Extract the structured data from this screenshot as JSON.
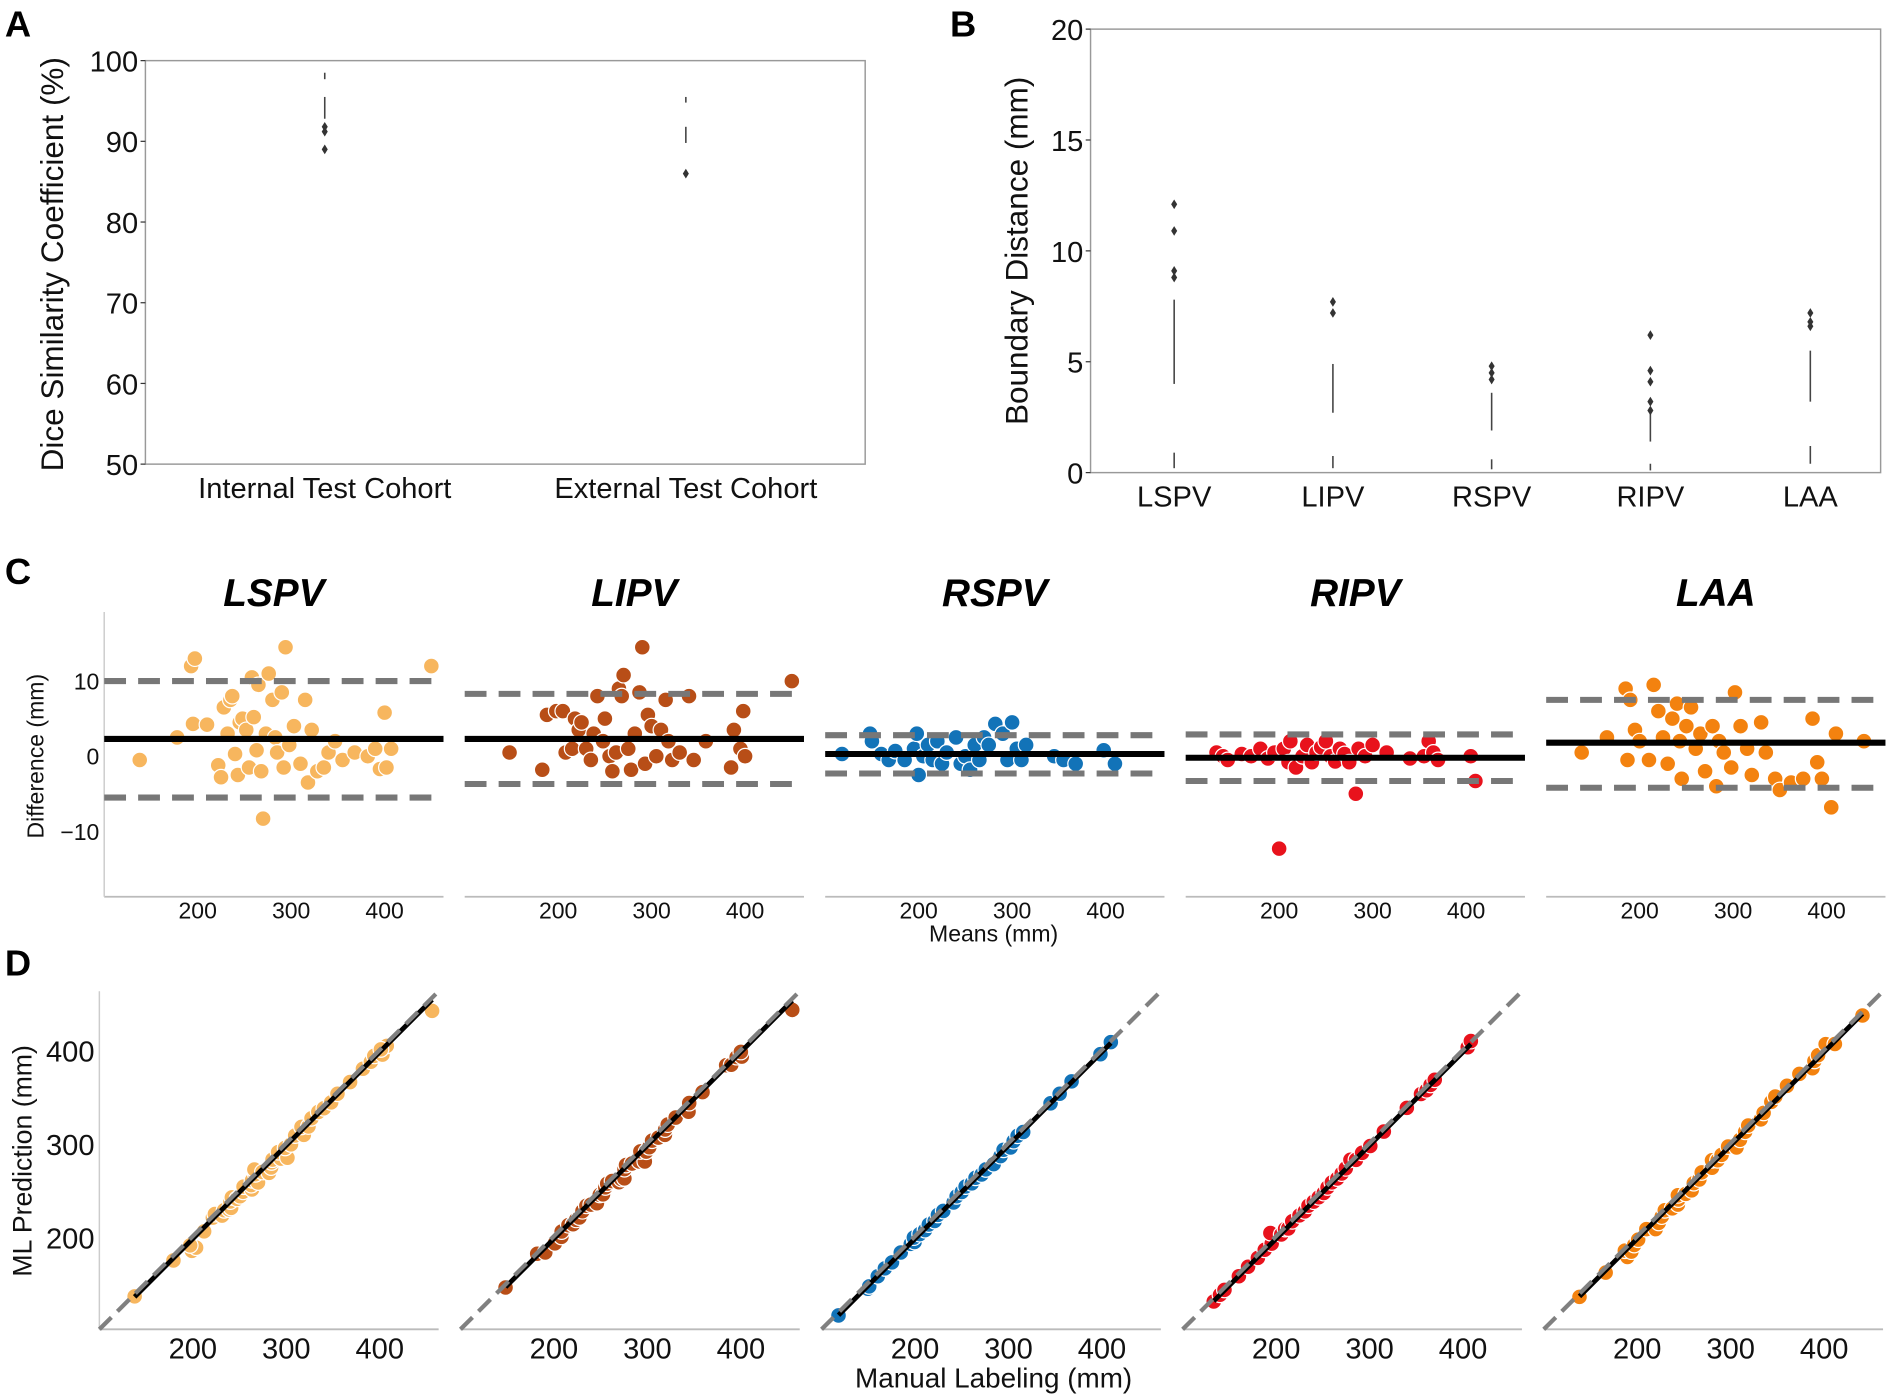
{
  "panels": {
    "a": "A",
    "b": "B",
    "c": "C",
    "d": "D"
  },
  "chart_data": [
    {
      "type": "box",
      "panel": "A",
      "ylabel": "Dice Similarity Coefficient (%)",
      "ylim": [
        50,
        100
      ],
      "yticks": [
        "50",
        "60",
        "70",
        "80",
        "90",
        "100"
      ],
      "yticks_values": [
        50,
        60,
        70,
        80,
        90,
        100
      ],
      "categories": [
        "Internal Test Cohort",
        "External Test Cohort"
      ],
      "boxes": [
        {
          "name": "Internal Test Cohort",
          "color": "#6b4199",
          "whislo": 92.8,
          "q1": 95.5,
          "med": 96.8,
          "q3": 97.7,
          "whishi": 98.5,
          "fliers": [
            91.8,
            91.2,
            89.0
          ]
        },
        {
          "name": "External Test Cohort",
          "color": "#cdb2d8",
          "whislo": 89.8,
          "q1": 91.8,
          "med": 93.5,
          "q3": 94.8,
          "whishi": 95.5,
          "fliers": [
            86.0
          ]
        }
      ]
    },
    {
      "type": "box",
      "panel": "B",
      "ylabel": "Boundary Distance (mm)",
      "ylim": [
        0,
        20
      ],
      "yticks": [
        "0",
        "5",
        "10",
        "15",
        "20"
      ],
      "yticks_values": [
        0,
        5,
        10,
        15,
        20
      ],
      "categories": [
        "LSPV",
        "LIPV",
        "RSPV",
        "RIPV",
        "LAA"
      ],
      "boxes": [
        {
          "name": "LSPV",
          "color": "#f4be7a",
          "whislo": 0.2,
          "q1": 0.9,
          "med": 2.0,
          "q3": 4.0,
          "whishi": 7.8,
          "fliers": [
            8.8,
            9.1,
            10.9,
            12.1
          ]
        },
        {
          "name": "LIPV",
          "color": "#aa5a2e",
          "whislo": 0.2,
          "q1": 0.75,
          "med": 1.3,
          "q3": 2.7,
          "whishi": 4.9,
          "fliers": [
            7.2,
            7.7
          ]
        },
        {
          "name": "RSPV",
          "color": "#0a72b0",
          "whislo": 0.15,
          "q1": 0.6,
          "med": 1.3,
          "q3": 1.9,
          "whishi": 3.6,
          "fliers": [
            4.2,
            4.5,
            4.8
          ]
        },
        {
          "name": "RIPV",
          "color": "#e0162c",
          "whislo": 0.1,
          "q1": 0.4,
          "med": 0.9,
          "q3": 1.4,
          "whishi": 2.7,
          "fliers": [
            2.8,
            3.2,
            4.1,
            4.6,
            6.2
          ]
        },
        {
          "name": "LAA",
          "color": "#f07f00",
          "whislo": 0.4,
          "q1": 1.2,
          "med": 2.1,
          "q3": 3.2,
          "whishi": 5.5,
          "fliers": [
            6.6,
            6.8,
            7.2
          ]
        }
      ]
    },
    {
      "type": "scatter",
      "panel": "C",
      "subtype": "bland-altman",
      "ylabel": "Difference (mm)",
      "xlabel": "Means (mm)",
      "xlim": [
        100,
        463
      ],
      "ylim": [
        -18.7,
        19.2
      ],
      "xticks": [
        "200",
        "300",
        "400"
      ],
      "xticks_values": [
        200,
        300,
        400
      ],
      "yticks": [
        "−10",
        "0",
        "10"
      ],
      "yticks_values": [
        -10,
        0,
        10
      ],
      "series": [
        {
          "name": "LSPV",
          "color": "#f7b65e",
          "bias": 2.3,
          "upper_loa": 10.0,
          "lower_loa": -5.5,
          "points": [
            [
              138,
              -0.5
            ],
            [
              178,
              2.5
            ],
            [
              193,
              12
            ],
            [
              197,
              13
            ],
            [
              195,
              4.3
            ],
            [
              210,
              4.2
            ],
            [
              222,
              -1.2
            ],
            [
              225,
              -2.8
            ],
            [
              228,
              6.5
            ],
            [
              232,
              3
            ],
            [
              235,
              7.5
            ],
            [
              237,
              8
            ],
            [
              240,
              0.3
            ],
            [
              243,
              -2.5
            ],
            [
              245,
              4.5
            ],
            [
              248,
              5
            ],
            [
              252,
              3.5
            ],
            [
              255,
              -1.5
            ],
            [
              258,
              10.5
            ],
            [
              260,
              5.2
            ],
            [
              263,
              0.8
            ],
            [
              265,
              9.5
            ],
            [
              268,
              -2
            ],
            [
              270,
              -8.3
            ],
            [
              273,
              3
            ],
            [
              276,
              11
            ],
            [
              280,
              7.5
            ],
            [
              283,
              2.5
            ],
            [
              285,
              0.5
            ],
            [
              290,
              8.5
            ],
            [
              292,
              -1.5
            ],
            [
              294,
              14.5
            ],
            [
              298,
              1.5
            ],
            [
              303,
              4
            ],
            [
              310,
              -1
            ],
            [
              315,
              7.5
            ],
            [
              318,
              -3.5
            ],
            [
              322,
              3.5
            ],
            [
              328,
              -2
            ],
            [
              335,
              -1.5
            ],
            [
              340,
              0.5
            ],
            [
              347,
              2
            ],
            [
              355,
              -0.5
            ],
            [
              368,
              0.5
            ],
            [
              382,
              0
            ],
            [
              390,
              1
            ],
            [
              395,
              -1.7
            ],
            [
              400,
              5.8
            ],
            [
              407,
              1
            ],
            [
              402,
              -1.5
            ],
            [
              450,
              12
            ]
          ]
        },
        {
          "name": "LIPV",
          "color": "#b84e17",
          "bias": 2.3,
          "upper_loa": 8.3,
          "lower_loa": -3.7,
          "points": [
            [
              148,
              0.5
            ],
            [
              183,
              -1.8
            ],
            [
              188,
              5.5
            ],
            [
              198,
              6
            ],
            [
              205,
              6
            ],
            [
              208,
              0.5
            ],
            [
              215,
              1
            ],
            [
              218,
              5
            ],
            [
              222,
              3.5
            ],
            [
              225,
              4.5
            ],
            [
              230,
              1
            ],
            [
              235,
              -0.5
            ],
            [
              238,
              3
            ],
            [
              242,
              8
            ],
            [
              248,
              2
            ],
            [
              250,
              5
            ],
            [
              255,
              0
            ],
            [
              258,
              -2
            ],
            [
              262,
              0.5
            ],
            [
              265,
              9
            ],
            [
              268,
              8
            ],
            [
              270,
              10.8
            ],
            [
              275,
              1
            ],
            [
              278,
              -1.8
            ],
            [
              282,
              3
            ],
            [
              287,
              8.5
            ],
            [
              290,
              14.5
            ],
            [
              293,
              -1
            ],
            [
              296,
              5.5
            ],
            [
              300,
              4
            ],
            [
              305,
              0
            ],
            [
              310,
              3.5
            ],
            [
              315,
              7.5
            ],
            [
              318,
              2
            ],
            [
              322,
              -0.5
            ],
            [
              330,
              0.5
            ],
            [
              340,
              8
            ],
            [
              345,
              -0.5
            ],
            [
              358,
              2
            ],
            [
              385,
              -1.5
            ],
            [
              388,
              3.5
            ],
            [
              395,
              1
            ],
            [
              398,
              6
            ],
            [
              400,
              0
            ],
            [
              450,
              10
            ]
          ]
        },
        {
          "name": "RSPV",
          "color": "#1273b8",
          "bias": 0.3,
          "upper_loa": 2.8,
          "lower_loa": -2.3,
          "points": [
            [
              118,
              0.3
            ],
            [
              148,
              3
            ],
            [
              150,
              2
            ],
            [
              160,
              0.3
            ],
            [
              168,
              -0.5
            ],
            [
              175,
              0.7
            ],
            [
              185,
              -0.5
            ],
            [
              195,
              1
            ],
            [
              198,
              3
            ],
            [
              200,
              -2.5
            ],
            [
              205,
              0
            ],
            [
              210,
              1.5
            ],
            [
              215,
              -0.5
            ],
            [
              220,
              2
            ],
            [
              225,
              -1
            ],
            [
              230,
              0.5
            ],
            [
              240,
              2.5
            ],
            [
              245,
              -1
            ],
            [
              250,
              0
            ],
            [
              255,
              -1.8
            ],
            [
              260,
              1.5
            ],
            [
              265,
              -0.5
            ],
            [
              270,
              2.5
            ],
            [
              275,
              1.5
            ],
            [
              282,
              4.3
            ],
            [
              290,
              3
            ],
            [
              295,
              -0.5
            ],
            [
              300,
              4.5
            ],
            [
              305,
              1
            ],
            [
              310,
              -0.5
            ],
            [
              315,
              1.5
            ],
            [
              345,
              0
            ],
            [
              355,
              -0.5
            ],
            [
              368,
              -1
            ],
            [
              398,
              0.8
            ],
            [
              410,
              -1
            ]
          ]
        },
        {
          "name": "RIPV",
          "color": "#e8121c",
          "bias": -0.2,
          "upper_loa": 2.9,
          "lower_loa": -3.3,
          "points": [
            [
              133,
              0.5
            ],
            [
              140,
              0
            ],
            [
              145,
              -0.5
            ],
            [
              160,
              0.3
            ],
            [
              170,
              0
            ],
            [
              180,
              1
            ],
            [
              188,
              -0.3
            ],
            [
              195,
              0.5
            ],
            [
              200,
              -12.3
            ],
            [
              205,
              1
            ],
            [
              210,
              -0.8
            ],
            [
              212,
              2
            ],
            [
              218,
              -1.5
            ],
            [
              225,
              0
            ],
            [
              230,
              1.5
            ],
            [
              235,
              -0.8
            ],
            [
              240,
              0.5
            ],
            [
              245,
              1.2
            ],
            [
              250,
              2
            ],
            [
              255,
              0
            ],
            [
              260,
              -0.7
            ],
            [
              265,
              1
            ],
            [
              270,
              0.3
            ],
            [
              275,
              -0.8
            ],
            [
              282,
              -5
            ],
            [
              285,
              1
            ],
            [
              292,
              0
            ],
            [
              300,
              1.5
            ],
            [
              315,
              0.5
            ],
            [
              340,
              -0.3
            ],
            [
              355,
              0
            ],
            [
              360,
              2
            ],
            [
              365,
              0.5
            ],
            [
              370,
              -0.5
            ],
            [
              405,
              0
            ],
            [
              410,
              -3.3
            ]
          ]
        },
        {
          "name": "LAA",
          "color": "#f3820f",
          "bias": 1.8,
          "upper_loa": 7.5,
          "lower_loa": -4.2,
          "points": [
            [
              138,
              0.5
            ],
            [
              165,
              2.5
            ],
            [
              185,
              9
            ],
            [
              187,
              -0.5
            ],
            [
              190,
              7.5
            ],
            [
              195,
              3.5
            ],
            [
              200,
              2
            ],
            [
              210,
              -0.5
            ],
            [
              215,
              9.5
            ],
            [
              220,
              6
            ],
            [
              225,
              2.5
            ],
            [
              230,
              -1
            ],
            [
              235,
              5
            ],
            [
              240,
              7
            ],
            [
              243,
              2
            ],
            [
              245,
              -3
            ],
            [
              250,
              4
            ],
            [
              255,
              6.5
            ],
            [
              260,
              1
            ],
            [
              265,
              3
            ],
            [
              270,
              -2
            ],
            [
              278,
              4
            ],
            [
              282,
              -4
            ],
            [
              285,
              2
            ],
            [
              290,
              0.5
            ],
            [
              298,
              -1.5
            ],
            [
              302,
              8.5
            ],
            [
              308,
              4
            ],
            [
              315,
              1
            ],
            [
              320,
              -2.5
            ],
            [
              330,
              4.5
            ],
            [
              335,
              0.5
            ],
            [
              345,
              -3
            ],
            [
              350,
              -4.5
            ],
            [
              362,
              -3.5
            ],
            [
              375,
              -3
            ],
            [
              385,
              5
            ],
            [
              390,
              -0.8
            ],
            [
              395,
              -3
            ],
            [
              405,
              -6.8
            ],
            [
              410,
              3
            ],
            [
              440,
              2
            ]
          ]
        }
      ]
    },
    {
      "type": "scatter",
      "panel": "D",
      "subtype": "correlation (manual = mean + diff/2, prediction = mean - diff/2 from panel C points)",
      "ylabel": "ML Prediction (mm)",
      "xlabel": "Manual Labeling (mm)",
      "xlim": [
        100,
        463
      ],
      "ylim": [
        103,
        465
      ],
      "xticks": [
        "200",
        "300",
        "400"
      ],
      "xticks_values": [
        200,
        300,
        400
      ],
      "yticks": [
        "200",
        "300",
        "400"
      ],
      "yticks_values": [
        200,
        300,
        400
      ],
      "identity_line": true,
      "series_names": [
        "LSPV",
        "LIPV",
        "RSPV",
        "RIPV",
        "LAA"
      ]
    }
  ]
}
